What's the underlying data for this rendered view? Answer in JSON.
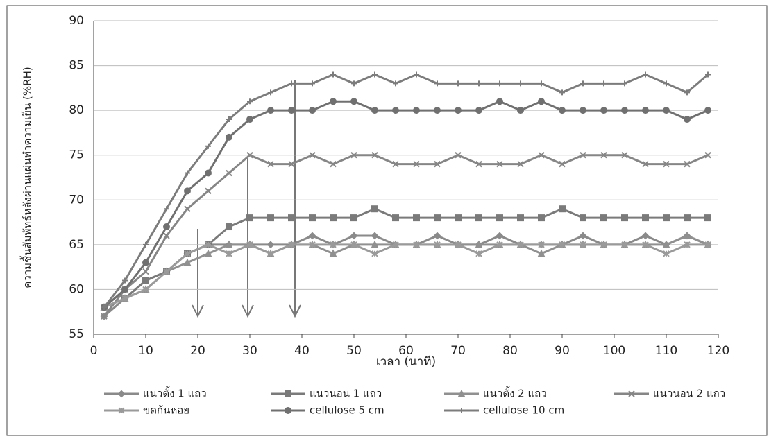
{
  "chart_data": {
    "type": "line",
    "x_label": "เวลา (นาที)",
    "y_label": "ความชื้นสัมพัทธ์หลังผ่านแผ่นทำความเย็น (%RH)",
    "x": [
      2,
      6,
      10,
      14,
      18,
      22,
      26,
      30,
      34,
      38,
      42,
      46,
      50,
      54,
      58,
      62,
      66,
      70,
      74,
      78,
      82,
      86,
      90,
      94,
      98,
      102,
      106,
      110,
      114,
      118
    ],
    "xlim": [
      0,
      120
    ],
    "xticks": [
      0,
      10,
      20,
      30,
      40,
      50,
      60,
      70,
      80,
      90,
      100,
      110,
      120
    ],
    "ylim": [
      55,
      90
    ],
    "yticks": [
      55,
      60,
      65,
      70,
      75,
      80,
      85,
      90
    ],
    "grid": true,
    "legend": "bottom",
    "series": [
      {
        "name": "แนวตั้ง 1 แถว",
        "color": "#8a8a8a",
        "marker": "diamond",
        "values": [
          57,
          59,
          61,
          62,
          64,
          65,
          65,
          65,
          65,
          65,
          66,
          65,
          66,
          66,
          65,
          65,
          66,
          65,
          65,
          66,
          65,
          65,
          65,
          66,
          65,
          65,
          66,
          65,
          66,
          65
        ]
      },
      {
        "name": "แนวนอน 1 แถว",
        "color": "#7a7a7a",
        "marker": "square",
        "values": [
          58,
          59,
          61,
          62,
          64,
          65,
          67,
          68,
          68,
          68,
          68,
          68,
          68,
          69,
          68,
          68,
          68,
          68,
          68,
          68,
          68,
          68,
          69,
          68,
          68,
          68,
          68,
          68,
          68,
          68
        ]
      },
      {
        "name": "แนวตั้ง 2 แถว",
        "color": "#909090",
        "marker": "triangle",
        "values": [
          58,
          59,
          60,
          62,
          63,
          64,
          65,
          65,
          64,
          65,
          65,
          64,
          65,
          65,
          65,
          65,
          65,
          65,
          65,
          65,
          65,
          64,
          65,
          65,
          65,
          65,
          65,
          65,
          66,
          65
        ]
      },
      {
        "name": "แนวนอน 2 แถว",
        "color": "#868686",
        "marker": "x",
        "values": [
          57,
          60,
          62,
          66,
          69,
          71,
          73,
          75,
          74,
          74,
          75,
          74,
          75,
          75,
          74,
          74,
          74,
          75,
          74,
          74,
          74,
          75,
          74,
          75,
          75,
          75,
          74,
          74,
          74,
          75
        ]
      },
      {
        "name": "ขดก้นหอย",
        "color": "#9a9a9a",
        "marker": "star",
        "values": [
          58,
          59,
          60,
          62,
          64,
          65,
          64,
          65,
          64,
          65,
          65,
          65,
          65,
          64,
          65,
          65,
          65,
          65,
          64,
          65,
          65,
          65,
          65,
          65,
          65,
          65,
          65,
          64,
          65,
          65
        ]
      },
      {
        "name": "cellulose 5 cm",
        "color": "#707070",
        "marker": "circle",
        "values": [
          58,
          60,
          63,
          67,
          71,
          73,
          77,
          79,
          80,
          80,
          80,
          81,
          81,
          80,
          80,
          80,
          80,
          80,
          80,
          81,
          80,
          81,
          80,
          80,
          80,
          80,
          80,
          80,
          79,
          80
        ]
      },
      {
        "name": "cellulose 10 cm",
        "color": "#7c7c7c",
        "marker": "plus",
        "values": [
          58,
          61,
          65,
          69,
          73,
          76,
          79,
          81,
          82,
          83,
          83,
          84,
          83,
          84,
          83,
          84,
          83,
          83,
          83,
          83,
          83,
          83,
          82,
          83,
          83,
          83,
          84,
          83,
          82,
          84
        ]
      }
    ]
  }
}
